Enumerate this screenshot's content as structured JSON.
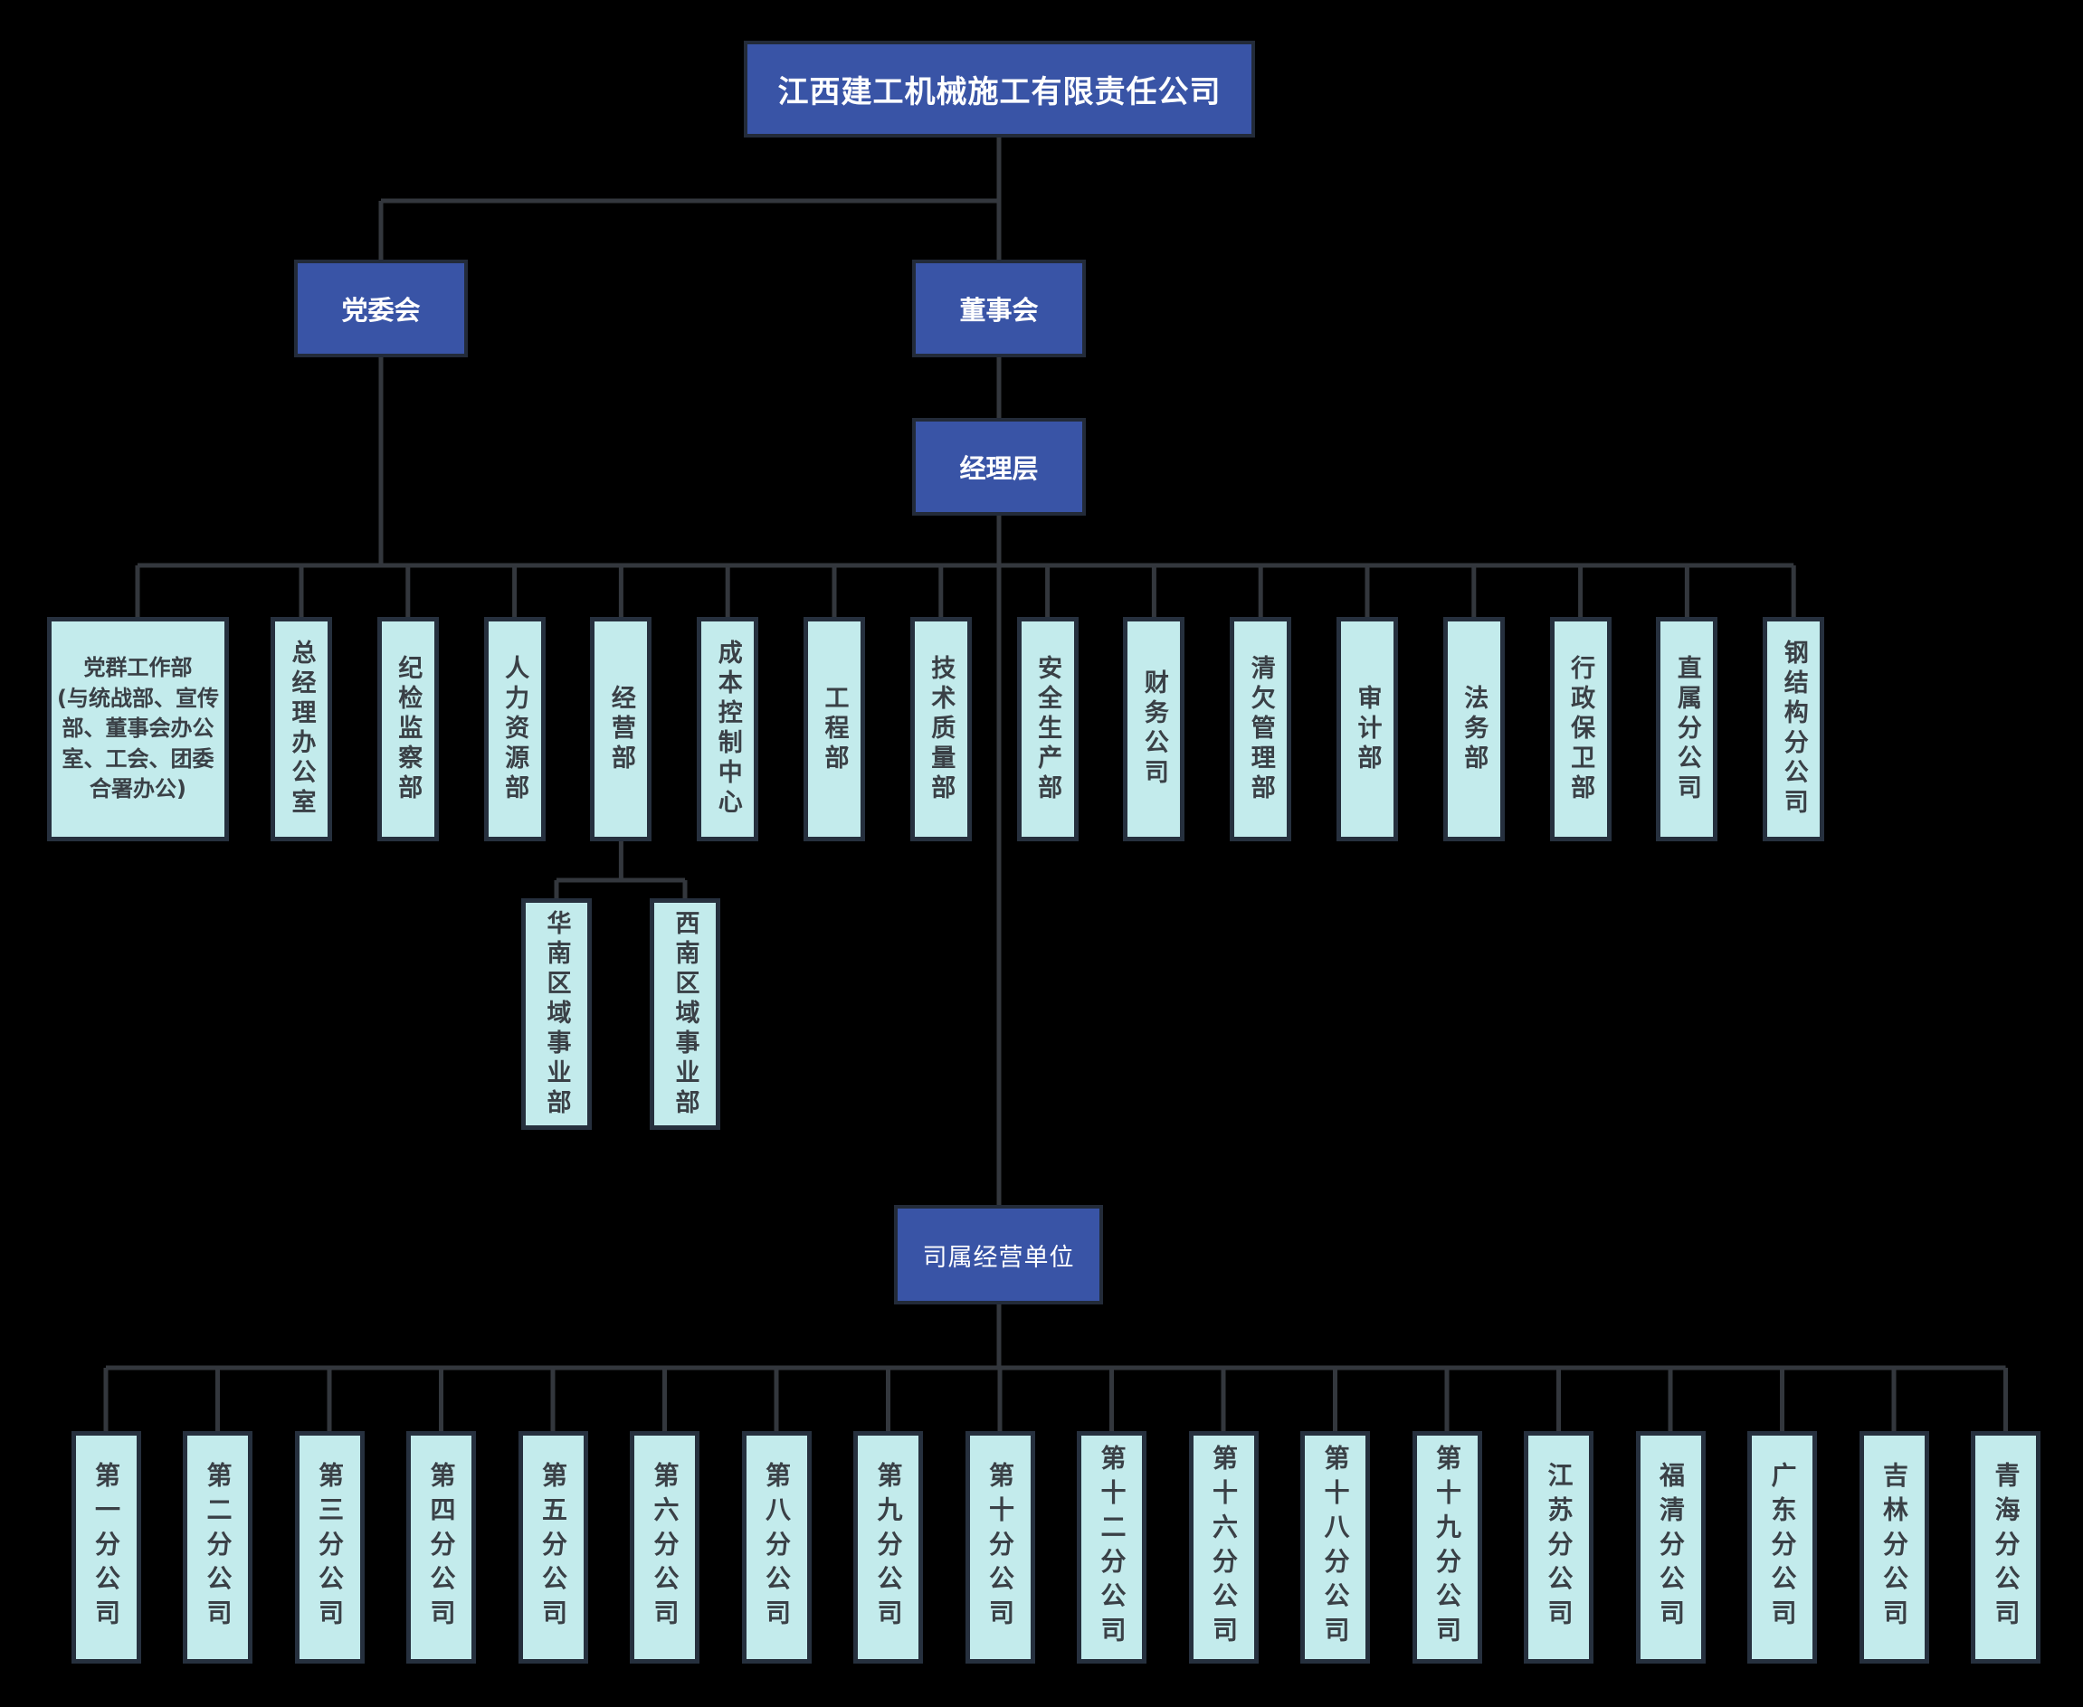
{
  "nodes": {
    "root": "江西建工机械施工有限责任公司",
    "party_committee": "党委会",
    "board": "董事会",
    "management": "经理层",
    "business_unit_group": "司属经营单位"
  },
  "departments": [
    "党群工作部\n(与统战部、宣传部、董事会办公室、工会、团委合署办公)",
    "总经理办公室",
    "纪检监察部",
    "人力资源部",
    "经营部",
    "成本控制中心",
    "工程部",
    "技术质量部",
    "安全生产部",
    "财务公司",
    "清欠管理部",
    "审计部",
    "法务部",
    "行政保卫部",
    "直属分公司",
    "钢结构分公司"
  ],
  "regional_divisions": [
    "华南区域事业部",
    "西南区域事业部"
  ],
  "branches": [
    "第一分公司",
    "第二分公司",
    "第三分公司",
    "第四分公司",
    "第五分公司",
    "第六分公司",
    "第八分公司",
    "第九分公司",
    "第十分公司",
    "第十二分公司",
    "第十六分公司",
    "第十八分公司",
    "第十九分公司",
    "江苏分公司",
    "福清分公司",
    "广东分公司",
    "吉林分公司",
    "青海分公司"
  ],
  "colors": {
    "background": "#000000",
    "primary_node_fill": "#3954A6",
    "primary_node_border": "#232B39",
    "primary_node_text": "#FFFFFF",
    "secondary_node_fill": "#C3EBEC",
    "secondary_node_border": "#26303E",
    "secondary_node_text": "#3A4046",
    "connector_line": "#33373D"
  }
}
